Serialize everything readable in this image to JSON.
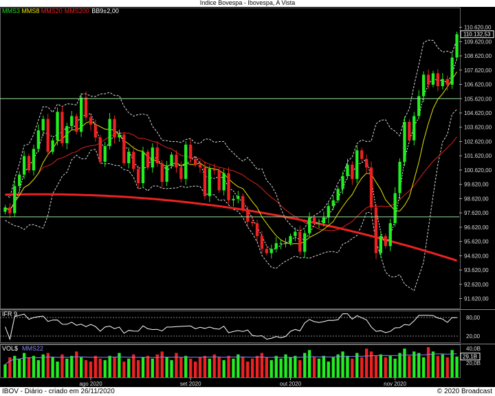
{
  "window": {
    "title": "Índice Bovespa - Ibovespa, A Vista"
  },
  "footer": {
    "left": "IBOV - Diário - criado em 26/11/2020",
    "right": "© 2020 Broadcast"
  },
  "legend": [
    {
      "label": "MMS3",
      "color": "#22dd22"
    },
    {
      "label": "MMS8",
      "color": "#e8e800"
    },
    {
      "label": "MMS20",
      "color": "#ee2222"
    },
    {
      "label": "MMS200",
      "color": "#ee2222"
    },
    {
      "label": "BB9±2,00",
      "color": "#ffffff"
    }
  ],
  "ifr": {
    "label": "IFR 9",
    "ticks": [
      "80,00",
      "20,00"
    ],
    "upper": 80,
    "lower": 20
  },
  "vol": {
    "label": "VOL$",
    "ma_label": "MMS22",
    "ticks": [
      "40,0B",
      "20,0B"
    ],
    "current": "29,1B"
  },
  "chart_data": {
    "type": "candlestick",
    "title": "Índice Bovespa - Ibovespa, A Vista",
    "price_ticks": [
      "110.620,00",
      "109.620,00",
      "108.620,00",
      "107.620,00",
      "106.620,00",
      "105.620,00",
      "104.620,00",
      "103.620,00",
      "102.620,00",
      "101.620,00",
      "100.620,00",
      "99.620,00",
      "98.620,00",
      "97.620,00",
      "96.620,00",
      "95.620,00",
      "94.620,00",
      "93.620,00",
      "92.620,00",
      "91.620,00"
    ],
    "price_tick_values": [
      110620,
      109620,
      108620,
      107620,
      106620,
      105620,
      104620,
      103620,
      102620,
      101620,
      100620,
      99620,
      98620,
      97620,
      96620,
      95620,
      94620,
      93620,
      92620,
      91620
    ],
    "ylim": [
      90970,
      111470
    ],
    "last_price": "110.132,53",
    "last_value": 110132.53,
    "horizontal_lines": [
      105620,
      97340
    ],
    "month_labels": [
      {
        "label": "ago 2020",
        "index": 18
      },
      {
        "label": "set 2020",
        "index": 39
      },
      {
        "label": "out 2020",
        "index": 60
      },
      {
        "label": "nov 2020",
        "index": 82
      }
    ],
    "closes": [
      98000,
      97600,
      99500,
      100300,
      101600,
      100600,
      102100,
      103400,
      104200,
      101900,
      102700,
      104700,
      102500,
      103700,
      104400,
      103300,
      105700,
      104300,
      103800,
      102900,
      101200,
      102300,
      104200,
      102900,
      103100,
      101100,
      101900,
      100700,
      99700,
      101900,
      100800,
      102200,
      101100,
      99800,
      100900,
      101700,
      100800,
      100000,
      102400,
      101400,
      101000,
      100800,
      98800,
      100700,
      100600,
      99200,
      100400,
      98500,
      98600,
      98800,
      97800,
      97000,
      96900,
      96000,
      95100,
      94800,
      95100,
      95500,
      95500,
      95500,
      96000,
      96300,
      94900,
      96200,
      97300,
      96900,
      96900,
      97300,
      98100,
      98500,
      99300,
      100200,
      101000,
      100000,
      102000,
      101400,
      100800,
      98000,
      94800,
      96000,
      95300,
      96900,
      99000,
      101200,
      104000,
      102700,
      104400,
      105800,
      107300,
      106600,
      107400,
      106500,
      107000,
      106600,
      108500,
      110132
    ],
    "volumes": [
      18,
      28,
      30,
      26,
      34,
      28,
      30,
      24,
      32,
      34,
      28,
      22,
      32,
      26,
      30,
      36,
      28,
      24,
      22,
      30,
      26,
      24,
      30,
      28,
      34,
      22,
      26,
      32,
      24,
      28,
      30,
      26,
      32,
      36,
      28,
      24,
      34,
      28,
      30,
      26,
      22,
      28,
      30,
      26,
      32,
      28,
      24,
      30,
      26,
      32,
      28,
      22,
      26,
      30,
      34,
      28,
      24,
      30,
      26,
      32,
      28,
      30,
      24,
      34,
      38,
      28,
      26,
      30,
      22,
      28,
      32,
      36,
      30,
      26,
      34,
      28,
      40,
      36,
      30,
      32,
      28,
      30,
      26,
      34,
      40,
      30,
      36,
      34,
      28,
      42,
      36,
      30,
      32,
      28,
      38,
      29
    ]
  }
}
